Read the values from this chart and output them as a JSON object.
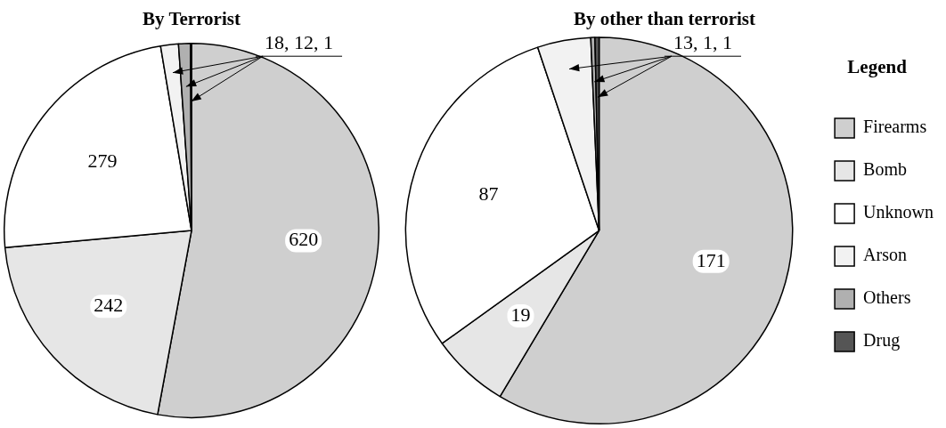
{
  "chart_data": [
    {
      "type": "pie",
      "title": "By Terrorist",
      "categories": [
        null,
        null,
        null,
        null,
        null,
        null
      ],
      "values": [
        620,
        242,
        279,
        18,
        12,
        1
      ],
      "colors": [
        "#cfcfcf",
        "#e6e6e6",
        "#ffffff",
        "#f2f2f2",
        "#b0b0b0",
        "#555555"
      ],
      "value_labels": [
        "620",
        "242",
        "279",
        null,
        null,
        null
      ],
      "annotations": [
        "18, 12, 1"
      ],
      "legend": false
    },
    {
      "type": "pie",
      "title": "By other than terrorist",
      "categories": [
        "Firearms",
        "Bomb",
        "Unknown",
        "Arson",
        "Others",
        "Drug"
      ],
      "values": [
        171,
        19,
        87,
        13,
        1,
        1
      ],
      "colors": [
        "#cfcfcf",
        "#e6e6e6",
        "#ffffff",
        "#f2f2f2",
        "#b0b0b0",
        "#555555"
      ],
      "value_labels": [
        "171",
        "19",
        "87",
        null,
        null,
        null
      ],
      "annotations": [
        "13, 1, 1"
      ],
      "legend": "right",
      "legend_title": "Legend"
    }
  ]
}
